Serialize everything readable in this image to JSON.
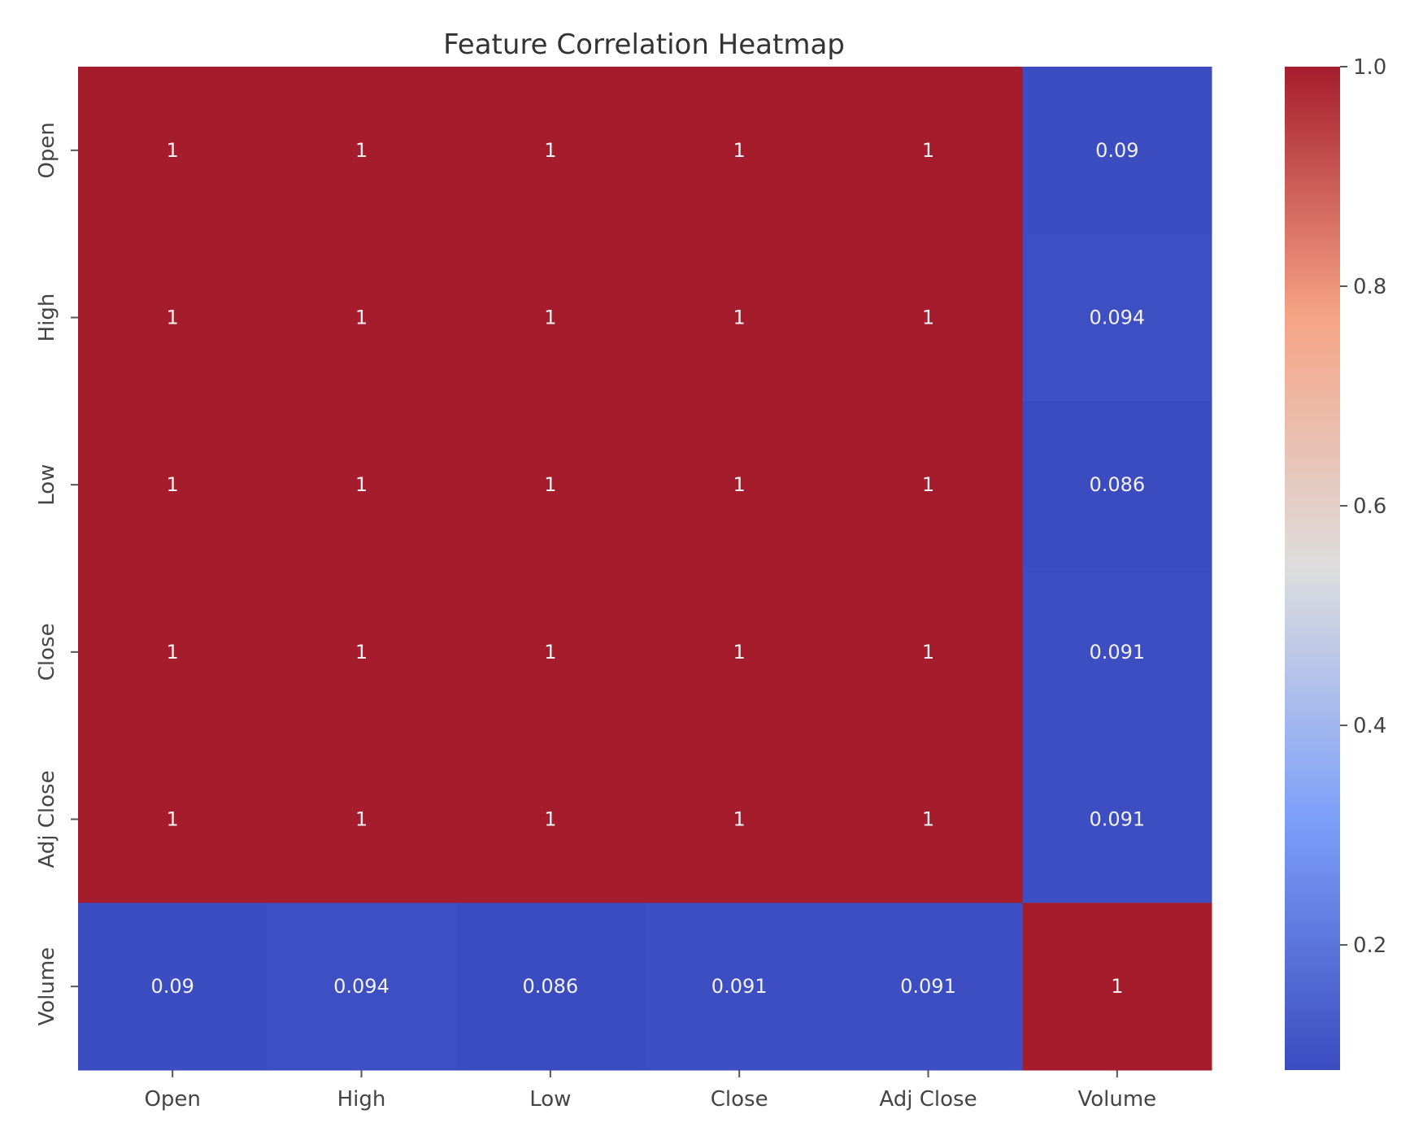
{
  "chart_data": {
    "type": "heatmap",
    "title": "Feature Correlation Heatmap",
    "x_labels": [
      "Open",
      "High",
      "Low",
      "Close",
      "Adj Close",
      "Volume"
    ],
    "y_labels": [
      "Open",
      "High",
      "Low",
      "Close",
      "Adj Close",
      "Volume"
    ],
    "values": [
      [
        1,
        1,
        1,
        1,
        1,
        0.09
      ],
      [
        1,
        1,
        1,
        1,
        1,
        0.094
      ],
      [
        1,
        1,
        1,
        1,
        1,
        0.086
      ],
      [
        1,
        1,
        1,
        1,
        1,
        0.091
      ],
      [
        1,
        1,
        1,
        1,
        1,
        0.091
      ],
      [
        0.09,
        0.094,
        0.086,
        0.091,
        0.091,
        1
      ]
    ],
    "annotations": [
      [
        "1",
        "1",
        "1",
        "1",
        "1",
        "0.09"
      ],
      [
        "1",
        "1",
        "1",
        "1",
        "1",
        "0.094"
      ],
      [
        "1",
        "1",
        "1",
        "1",
        "1",
        "0.086"
      ],
      [
        "1",
        "1",
        "1",
        "1",
        "1",
        "0.091"
      ],
      [
        "1",
        "1",
        "1",
        "1",
        "1",
        "0.091"
      ],
      [
        "0.09",
        "0.094",
        "0.086",
        "0.091",
        "0.091",
        "1"
      ]
    ],
    "colormap": "coolwarm",
    "colorbar": {
      "range": [
        0.086,
        1.0
      ],
      "ticks": [
        0.2,
        0.4,
        0.6,
        0.8,
        1.0
      ],
      "tick_labels": [
        "0.2",
        "0.4",
        "0.6",
        "0.8",
        "1.0"
      ]
    }
  }
}
